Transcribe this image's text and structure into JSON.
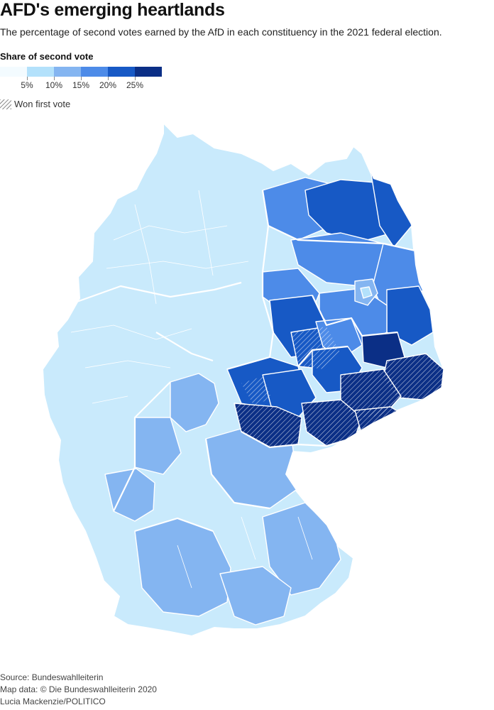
{
  "header": {
    "title": "AFD's emerging heartlands",
    "subtitle": "The percentage of second votes earned by the AfD in each constituency in the 2021 federal election."
  },
  "legend": {
    "title": "Share of second vote",
    "colors": [
      "#f3fbff",
      "#b3e1fb",
      "#84b5f1",
      "#4d8be8",
      "#1759c5",
      "#0b2f86"
    ],
    "ticks": [
      "5%",
      "10%",
      "15%",
      "20%",
      "25%"
    ],
    "hatch_label": "Won first vote"
  },
  "map": {
    "land_fill": "#c9eafc",
    "border_color": "#ffffff"
  },
  "footer": {
    "source": "Source: Bundeswahlleiterin",
    "map_data": "Map data: © Die Bundeswahlleiterin 2020",
    "credit": "Lucia Mackenzie/POLITICO"
  }
}
